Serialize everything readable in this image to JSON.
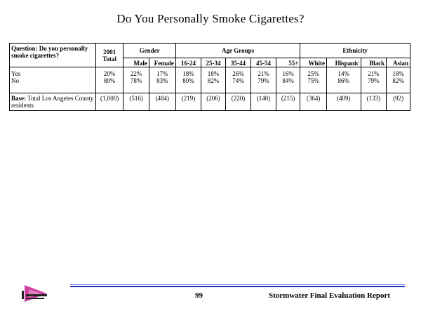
{
  "page": {
    "title": "Do You Personally Smoke Cigarettes?"
  },
  "table": {
    "question_label": "Question:",
    "question_text": "Do you personally smoke cigarettes?",
    "total_header": "2001 Total",
    "groups": [
      {
        "name": "Gender",
        "columns": [
          "Male",
          "Female"
        ]
      },
      {
        "name": "Age Groups",
        "columns": [
          "16-24",
          "25-34",
          "35-44",
          "45-54",
          "55+"
        ]
      },
      {
        "name": "Ethnicity",
        "columns": [
          "White",
          "Hispanic",
          "Black",
          "Asian"
        ]
      }
    ],
    "rows": [
      {
        "label": "Yes",
        "total": "20%",
        "values": [
          "22%",
          "17%",
          "18%",
          "18%",
          "26%",
          "21%",
          "16%",
          "25%",
          "14%",
          "21%",
          "18%"
        ]
      },
      {
        "label": "No",
        "total": "80%",
        "values": [
          "78%",
          "83%",
          "80%",
          "82%",
          "74%",
          "79%",
          "84%",
          "75%",
          "86%",
          "79%",
          "82%"
        ]
      }
    ],
    "base": {
      "label": "Base:",
      "text": "Total Los Angeles County residents",
      "total": "(1,000)",
      "values": [
        "(516)",
        "(484)",
        "(219)",
        "(206)",
        "(220)",
        "(140)",
        "(215)",
        "(364)",
        "(409)",
        "(133)",
        "(92)"
      ]
    }
  },
  "footer": {
    "page_number": "99",
    "report_name": "Stormwater Final Evaluation Report",
    "logo_icon": "agency-logo-icon",
    "rule_color": "#2233c0"
  }
}
